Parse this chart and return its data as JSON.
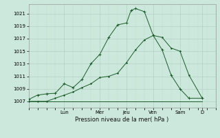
{
  "background_color": "#cce8dc",
  "plot_bg_color": "#cce8dc",
  "grid_major_color": "#aaccbc",
  "grid_minor_color": "#bbdacc",
  "line_color": "#1a5c28",
  "title": "Pression niveau de la mer( hPa )",
  "ylabel_ticks": [
    1007,
    1009,
    1011,
    1013,
    1015,
    1017,
    1019,
    1021
  ],
  "ylim": [
    1006.0,
    1022.5
  ],
  "x_day_labels": [
    "Lun",
    "Mer",
    "Jeu",
    "Ven",
    "Sam",
    "D"
  ],
  "x_day_positions": [
    16,
    32,
    44,
    56,
    68,
    78
  ],
  "xlim": [
    0,
    84
  ],
  "series1_x": [
    0,
    4,
    8,
    12,
    16,
    20,
    24,
    28,
    32,
    36,
    40,
    44,
    46,
    48,
    52,
    56,
    60,
    64,
    68,
    72,
    78
  ],
  "series1_y": [
    1007.3,
    1008.0,
    1008.2,
    1008.3,
    1009.8,
    1009.2,
    1010.5,
    1013.0,
    1014.5,
    1017.2,
    1019.2,
    1019.5,
    1021.5,
    1021.8,
    1021.3,
    1017.5,
    1015.2,
    1011.2,
    1009.0,
    1007.5,
    1007.5
  ],
  "series2_x": [
    0,
    4,
    8,
    12,
    16,
    20,
    24,
    28,
    32,
    36,
    40,
    44,
    48,
    52,
    56,
    60,
    64,
    68,
    72,
    78
  ],
  "series2_y": [
    1007.0,
    1007.0,
    1007.0,
    1007.5,
    1008.0,
    1008.5,
    1009.2,
    1009.8,
    1010.8,
    1011.0,
    1011.5,
    1013.2,
    1015.2,
    1016.8,
    1017.5,
    1017.2,
    1015.5,
    1015.0,
    1011.2,
    1007.5
  ],
  "series3_x": [
    0,
    78
  ],
  "series3_y": [
    1007.0,
    1007.0
  ]
}
